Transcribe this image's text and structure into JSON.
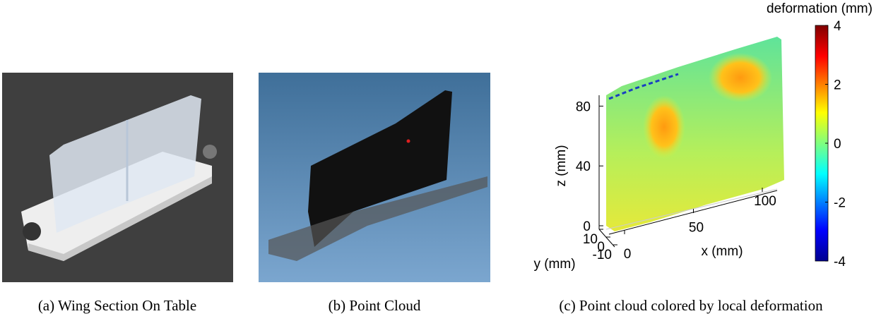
{
  "figure": {
    "panels": [
      {
        "caption": "(a) Wing Section On Table"
      },
      {
        "caption": "(b) Point Cloud"
      },
      {
        "caption": "(c) Point cloud colored by local deformation",
        "colorbar": {
          "label": "deformation (mm)",
          "lim": [
            -4,
            4
          ],
          "ticks": [
            -4,
            -2,
            0,
            2,
            4
          ]
        },
        "axes": {
          "x_label": "x (mm)",
          "y_label": "y (mm)",
          "z_label": "z (mm)",
          "xticks": [
            0,
            50,
            100
          ],
          "yticks": [
            -10,
            0,
            10
          ],
          "zticks": [
            0,
            40,
            80
          ]
        }
      }
    ]
  }
}
